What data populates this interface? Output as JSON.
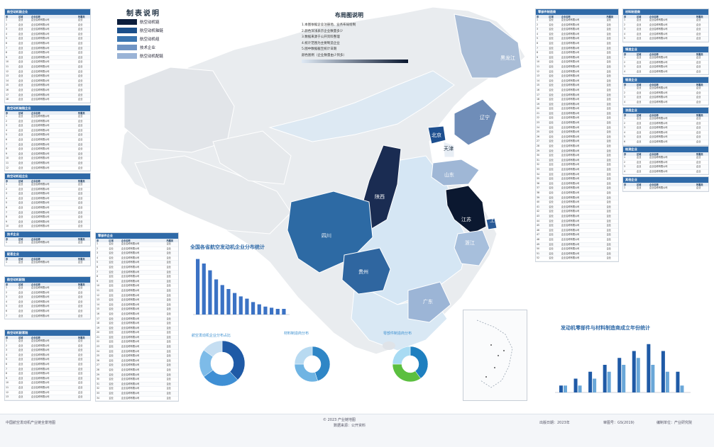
{
  "legend": {
    "title": "制表说明",
    "items": [
      {
        "label": "航空动机链",
        "color": "#0c1e3d"
      },
      {
        "label": "航空动机轴链",
        "color": "#1b4f8a"
      },
      {
        "label": "航空动机组",
        "color": "#3a75b0"
      },
      {
        "label": "技术企业",
        "color": "#6f94c4"
      },
      {
        "label": "航空动机配链",
        "color": "#9ab3d6"
      }
    ]
  },
  "note": {
    "title": "布局图说明",
    "lines": [
      "1.本图依据企业注册地、业务布局绘制",
      "2.颜色深浅表示企业数量多少",
      "3.数据来源于公开资料整理",
      "4.统计范围为主要制造企业",
      "5.图中数据截至统计日期",
      "颜色图例（企业数量由少到多）"
    ]
  },
  "map": {
    "provinces": {
      "beijing": "北京",
      "tianjin": "天津",
      "liaoning": "辽宁",
      "heilongjiang": "黑龙江",
      "shandong": "山东",
      "jiangsu": "江苏",
      "shanghai": "上海",
      "zhejiang": "浙江",
      "shaanxi": "陕西",
      "sichuan": "四川",
      "guizhou": "贵州",
      "guangdong": "广东"
    }
  },
  "charts": {
    "bar_title": "全国各省航空发动机企业分布统计",
    "donut1_title": "航空发动机企业分布占比",
    "donut2_title": "材料制造商分布",
    "donut3_title": "零部件制造商分布",
    "grouped_title": "发动机零部件与材料制造商成立年份统计"
  },
  "chart_data": [
    {
      "type": "bar",
      "title": "全国各省航空发动机企业分布统计",
      "values": [
        98,
        90,
        78,
        62,
        52,
        45,
        38,
        32,
        28,
        22,
        18,
        14,
        12,
        10,
        10
      ],
      "color": "#3b72c4"
    },
    {
      "type": "pie",
      "title": "航空发动机企业分布占比",
      "values": [
        38,
        27,
        20,
        15
      ],
      "colors": [
        "#1f5aa6",
        "#3f8fd4",
        "#7dbbe8",
        "#c5def2"
      ]
    },
    {
      "type": "pie",
      "title": "材料制造商分布",
      "values": [
        45,
        30,
        25
      ],
      "colors": [
        "#2f86c6",
        "#6fb4e3",
        "#b8daf1"
      ]
    },
    {
      "type": "pie",
      "title": "零部件制造商分布",
      "values": [
        40,
        35,
        25
      ],
      "colors": [
        "#1e7fbf",
        "#5bbf3f",
        "#a8dbf3"
      ]
    },
    {
      "type": "bar",
      "title": "发动机零部件与材料制造商成立年份统计",
      "series": [
        {
          "values": [
            1,
            2,
            3,
            4,
            5,
            6,
            7,
            6,
            3
          ]
        },
        {
          "values": [
            1,
            1,
            2,
            3,
            4,
            5,
            4,
            3,
            1
          ]
        }
      ],
      "colors": [
        "#1f5aa6",
        "#6aa7d8"
      ]
    }
  ],
  "panels": {
    "left": [
      {
        "title": "航空动机链企业",
        "cols": [
          "序",
          "区域",
          "企业名称",
          "所属类"
        ],
        "rows": 20
      },
      {
        "title": "航空动机轴链企业",
        "cols": [
          "序",
          "区域",
          "企业名称",
          "所属类"
        ],
        "rows": 14
      },
      {
        "title": "航空动机组企业",
        "cols": [
          "序",
          "区域",
          "企业名称",
          "所属类"
        ],
        "rows": 12
      },
      {
        "title": "技术企业",
        "cols": [
          "序",
          "区域",
          "企业名称",
          "所属类"
        ],
        "rows": 3
      },
      {
        "title": "配套企业",
        "cols": [
          "序",
          "区域",
          "企业名称",
          "所属类"
        ],
        "rows": 2
      }
    ],
    "left2": [
      {
        "title": "航空动机配链",
        "cols": [
          "序",
          "区域",
          "企业名称",
          "所属类"
        ],
        "rows": 7
      },
      {
        "title": "航空动机配套链",
        "cols": [
          "序",
          "区域",
          "企业名称",
          "所属类"
        ],
        "rows": 13
      }
    ],
    "mid": {
      "title": "零部件企业",
      "cols": [
        "序",
        "区域",
        "企业名称",
        "所属类"
      ],
      "rows": 40
    },
    "right1": {
      "title": "零部件制造商",
      "cols": [
        "序",
        "区域",
        "企业名称",
        "所属类"
      ],
      "rows": 58
    },
    "right2": [
      {
        "title": "材料制造商",
        "cols": [
          "序",
          "区域",
          "企业名称",
          "所属类"
        ],
        "rows": 8
      },
      {
        "title": "铸造企业",
        "cols": [
          "序",
          "区域",
          "企业名称",
          "所属类"
        ],
        "rows": 6
      },
      {
        "title": "锻造企业",
        "cols": [
          "序",
          "区域",
          "企业名称",
          "所属类"
        ],
        "rows": 6
      },
      {
        "title": "涂层企业",
        "cols": [
          "序",
          "区域",
          "企业名称",
          "所属类"
        ],
        "rows": 8
      },
      {
        "title": "检测企业",
        "cols": [
          "序",
          "区域",
          "企业名称",
          "所属类"
        ],
        "rows": 6
      },
      {
        "title": "其他企业",
        "cols": [
          "序",
          "区域",
          "企业名称",
          "所属类"
        ],
        "rows": 3
      }
    ],
    "cell_text": [
      "企",
      "业",
      "名",
      "称"
    ]
  },
  "footer": {
    "left": "中国航空发动机产业链全景地图",
    "center1": "© 2023 产业链地图",
    "center2": "数据来源：公开资料",
    "right1": "出版日期：2023年",
    "right2": "审图号：GS(2019)",
    "right3": "编制单位：产业研究院"
  }
}
